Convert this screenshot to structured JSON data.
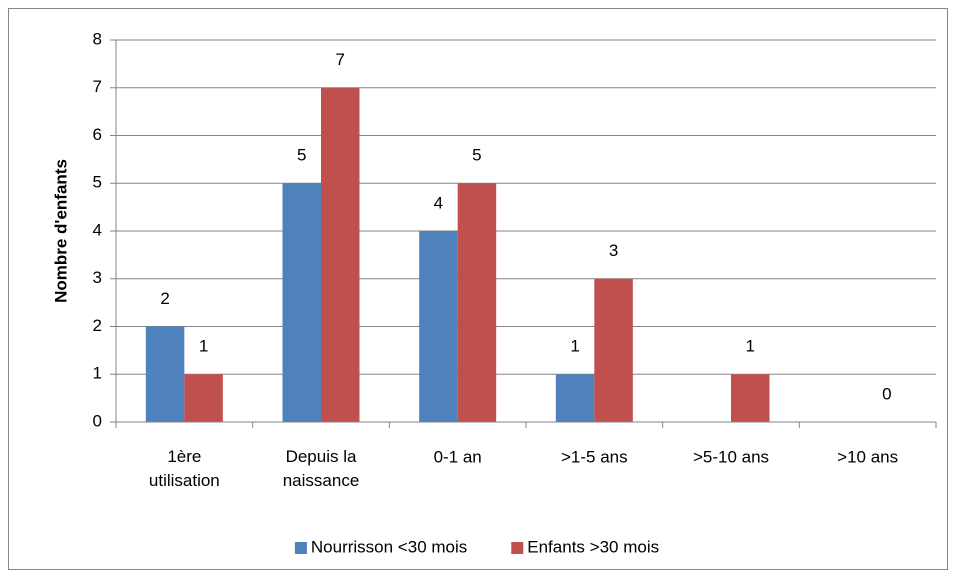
{
  "chart_data": {
    "type": "bar",
    "y_label": "Nombre d'enfants",
    "categories": [
      "1ère\nutilisation",
      "Depuis la\nnaissance",
      "0-1 an",
      ">1-5 ans",
      ">5-10 ans",
      ">10 ans"
    ],
    "series": [
      {
        "name": "Nourrisson <30 mois",
        "color": "#4f81bd",
        "values": [
          2,
          5,
          4,
          1,
          null,
          null
        ]
      },
      {
        "name": "Enfants >30 mois",
        "color": "#c0504d",
        "values": [
          1,
          7,
          5,
          3,
          1,
          0
        ]
      }
    ],
    "ylim": [
      0,
      8
    ],
    "yticks": [
      0,
      1,
      2,
      3,
      4,
      5,
      6,
      7,
      8
    ],
    "grid": true,
    "legend": "bottom"
  }
}
